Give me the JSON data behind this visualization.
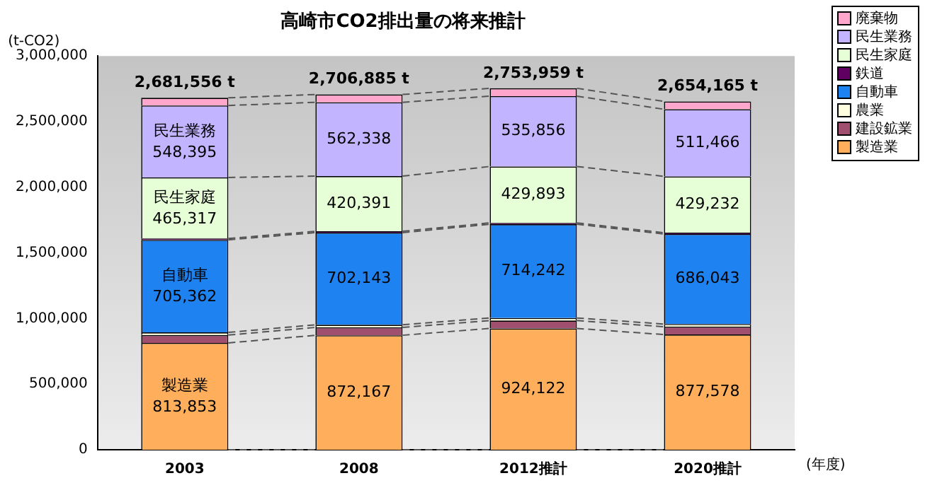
{
  "chart_data": {
    "type": "bar",
    "stacked": true,
    "title": "高崎市CO2排出量の将来推計",
    "ylabel": "(t-CO2)",
    "xlabel": "(年度)",
    "categories": [
      "2003",
      "2008",
      "2012推計",
      "2020推計"
    ],
    "series": [
      {
        "name": "製造業",
        "color": "#ffae5c",
        "values": [
          813853,
          872167,
          924122,
          877578
        ],
        "value_labels": [
          "製造業\n813,853",
          "872,167",
          "924,122",
          "877,578"
        ]
      },
      {
        "name": "建設鉱業",
        "color": "#a0506e",
        "values": [
          60000,
          60000,
          60000,
          60000
        ]
      },
      {
        "name": "農業",
        "color": "#ffffe0",
        "values": [
          20000,
          20000,
          20000,
          20000
        ]
      },
      {
        "name": "自動車",
        "color": "#1e82f0",
        "values": [
          705362,
          702143,
          714242,
          686043
        ],
        "value_labels": [
          "自動車\n705,362",
          "702,143",
          "714,242",
          "686,043"
        ]
      },
      {
        "name": "鉄道",
        "color": "#600060",
        "values": [
          10000,
          10000,
          10000,
          10000
        ]
      },
      {
        "name": "民生家庭",
        "color": "#e6ffd6",
        "values": [
          465317,
          420391,
          429893,
          429232
        ],
        "value_labels": [
          "民生家庭\n465,317",
          "420,391",
          "429,893",
          "429,232"
        ]
      },
      {
        "name": "民生業務",
        "color": "#c2b4ff",
        "values": [
          548395,
          562338,
          535856,
          511466
        ],
        "value_labels": [
          "民生業務\n548,395",
          "562,338",
          "535,856",
          "511,466"
        ]
      },
      {
        "name": "廃棄物",
        "color": "#ffa6cc",
        "values": [
          58629,
          59846,
          59846,
          59846
        ]
      }
    ],
    "totals": [
      "2,681,556 t",
      "2,706,885 t",
      "2,753,959 t",
      "2,654,165 t"
    ],
    "ylim": [
      0,
      3000000
    ],
    "yticks": [
      0,
      {
        "value": 500000,
        "label": "500,000"
      },
      {
        "value": 1000000,
        "label": "1,000,000"
      },
      {
        "value": 1500000,
        "label": "1,500,000"
      },
      {
        "value": 2000000,
        "label": "2,000,000"
      },
      {
        "value": 2500000,
        "label": "2,500,000"
      },
      {
        "value": 3000000,
        "label": "3,000,000"
      }
    ],
    "grid": false,
    "legend": "top right"
  }
}
